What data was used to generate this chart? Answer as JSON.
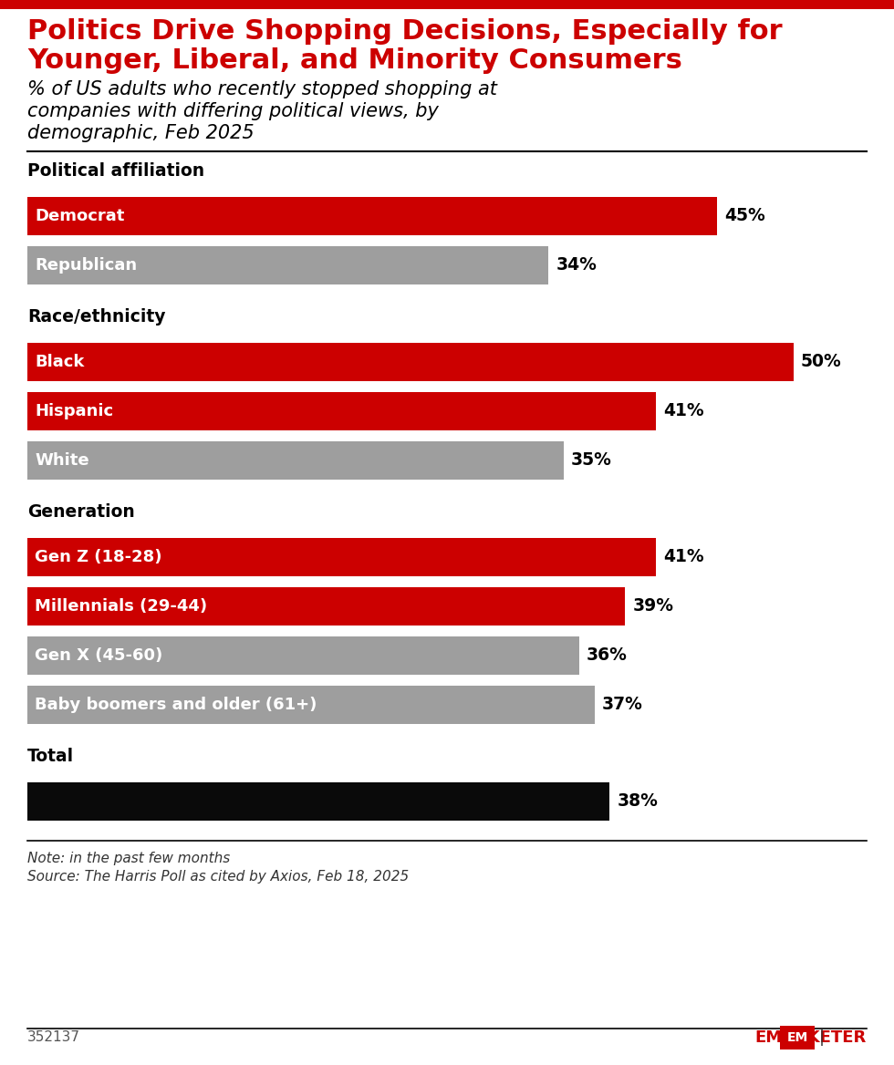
{
  "title_line1": "Politics Drive Shopping Decisions, Especially for",
  "title_line2": "Younger, Liberal, and Minority Consumers",
  "subtitle_line1": "% of US adults who recently stopped shopping at",
  "subtitle_line2": "companies with differing political views, by",
  "subtitle_line3": "demographic, Feb 2025",
  "note_line1": "Note: in the past few months",
  "note_line2": "Source: The Harris Poll as cited by Axios, Feb 18, 2025",
  "footnote_id": "352137",
  "sections": [
    {
      "label": "Political affiliation",
      "bars": [
        {
          "name": "Democrat",
          "value": 45,
          "color": "#cc0000",
          "text_color": "#ffffff"
        },
        {
          "name": "Republican",
          "value": 34,
          "color": "#9e9e9e",
          "text_color": "#ffffff"
        }
      ]
    },
    {
      "label": "Race/ethnicity",
      "bars": [
        {
          "name": "Black",
          "value": 50,
          "color": "#cc0000",
          "text_color": "#ffffff"
        },
        {
          "name": "Hispanic",
          "value": 41,
          "color": "#cc0000",
          "text_color": "#ffffff"
        },
        {
          "name": "White",
          "value": 35,
          "color": "#9e9e9e",
          "text_color": "#ffffff"
        }
      ]
    },
    {
      "label": "Generation",
      "bars": [
        {
          "name": "Gen Z (18-28)",
          "value": 41,
          "color": "#cc0000",
          "text_color": "#ffffff"
        },
        {
          "name": "Millennials (29-44)",
          "value": 39,
          "color": "#cc0000",
          "text_color": "#ffffff"
        },
        {
          "name": "Gen X (45-60)",
          "value": 36,
          "color": "#9e9e9e",
          "text_color": "#ffffff"
        },
        {
          "name": "Baby boomers and older (61+)",
          "value": 37,
          "color": "#9e9e9e",
          "text_color": "#ffffff"
        }
      ]
    },
    {
      "label": "Total",
      "bars": [
        {
          "name": "",
          "value": 38,
          "color": "#0a0a0a",
          "text_color": "#ffffff"
        }
      ]
    }
  ],
  "max_value": 50,
  "background_color": "#ffffff",
  "title_color": "#cc0000",
  "subtitle_color": "#000000",
  "section_label_color": "#000000",
  "value_label_color": "#000000",
  "top_stripe_color": "#cc0000"
}
